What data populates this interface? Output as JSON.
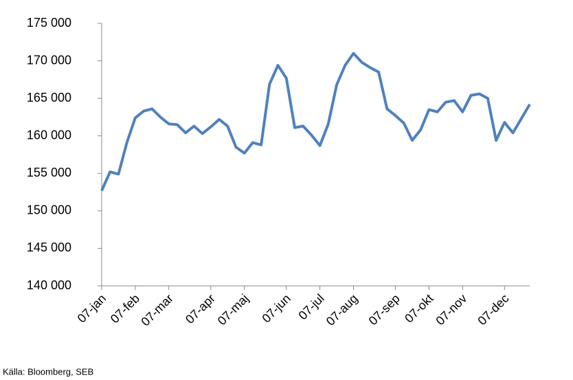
{
  "chart_data": {
    "type": "line",
    "categories": [
      "07-jan",
      null,
      null,
      null,
      "07-feb",
      null,
      null,
      null,
      "07-mar",
      null,
      null,
      null,
      null,
      "07-apr",
      null,
      null,
      null,
      "07-maj",
      null,
      null,
      null,
      null,
      "07-jun",
      null,
      null,
      null,
      "07-jul",
      null,
      null,
      null,
      "07-aug",
      null,
      null,
      null,
      null,
      "07-sep",
      null,
      null,
      null,
      "07-okt",
      null,
      null,
      null,
      "07-nov",
      null,
      null,
      null,
      null,
      "07-dec",
      null,
      null,
      null
    ],
    "series": [
      {
        "color": "#4f81bd",
        "values": [
          152700,
          155200,
          154900,
          159100,
          162400,
          163300,
          163600,
          162500,
          161600,
          161500,
          160400,
          161300,
          160300,
          161200,
          162200,
          161300,
          158500,
          157700,
          159100,
          158800,
          166900,
          169400,
          167700,
          161100,
          161300,
          160100,
          158700,
          161600,
          166800,
          169400,
          171000,
          169800,
          169100,
          168500,
          163600,
          162700,
          161700,
          159400,
          160800,
          163500,
          163200,
          164500,
          164700,
          163200,
          165400,
          165600,
          165000,
          159400,
          161800,
          160400,
          162300,
          164200
        ]
      }
    ],
    "ylim": [
      140000,
      175000
    ],
    "yticks": [
      {
        "value": 140000,
        "label": "140 000"
      },
      {
        "value": 145000,
        "label": "145 000"
      },
      {
        "value": 150000,
        "label": "150 000"
      },
      {
        "value": 155000,
        "label": "155 000"
      },
      {
        "value": 160000,
        "label": "160 000"
      },
      {
        "value": 165000,
        "label": "165 000"
      },
      {
        "value": 170000,
        "label": "170 000"
      },
      {
        "value": 175000,
        "label": "175 000"
      }
    ],
    "grid": false
  },
  "source": "Källa: Bloomberg, SEB"
}
